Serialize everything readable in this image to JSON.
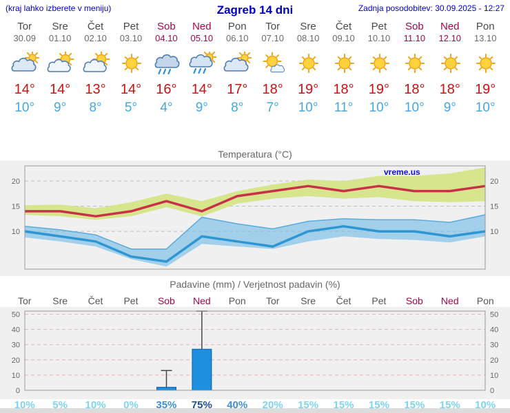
{
  "header": {
    "hint": "(kraj lahko izberete v meniju)",
    "title": "Zagreb 14 dni",
    "updated": "Zadnja posodobitev: 30.09.2025 - 12:27"
  },
  "watermark": "vreme.us",
  "days": [
    {
      "name": "Tor",
      "date": "30.09",
      "icon": "cloudy",
      "tmax": "14°",
      "tmin": "10°",
      "weekend": false
    },
    {
      "name": "Sre",
      "date": "01.10",
      "icon": "partly",
      "tmax": "14°",
      "tmin": "9°",
      "weekend": false
    },
    {
      "name": "Čet",
      "date": "02.10",
      "icon": "partly",
      "tmax": "13°",
      "tmin": "8°",
      "weekend": false
    },
    {
      "name": "Pet",
      "date": "03.10",
      "icon": "sunny",
      "tmax": "14°",
      "tmin": "5°",
      "weekend": false
    },
    {
      "name": "Sob",
      "date": "04.10",
      "icon": "rain",
      "tmax": "16°",
      "tmin": "4°",
      "weekend": true
    },
    {
      "name": "Ned",
      "date": "05.10",
      "icon": "rain-sun",
      "tmax": "14°",
      "tmin": "9°",
      "weekend": true
    },
    {
      "name": "Pon",
      "date": "06.10",
      "icon": "cloudy",
      "tmax": "17°",
      "tmin": "8°",
      "weekend": false
    },
    {
      "name": "Tor",
      "date": "07.10",
      "icon": "mostly-sunny",
      "tmax": "18°",
      "tmin": "7°",
      "weekend": false
    },
    {
      "name": "Sre",
      "date": "08.10",
      "icon": "sunny",
      "tmax": "19°",
      "tmin": "10°",
      "weekend": false
    },
    {
      "name": "Čet",
      "date": "09.10",
      "icon": "sunny",
      "tmax": "18°",
      "tmin": "11°",
      "weekend": false
    },
    {
      "name": "Pet",
      "date": "10.10",
      "icon": "sunny",
      "tmax": "19°",
      "tmin": "10°",
      "weekend": false
    },
    {
      "name": "Sob",
      "date": "11.10",
      "icon": "sunny",
      "tmax": "18°",
      "tmin": "10°",
      "weekend": true
    },
    {
      "name": "Ned",
      "date": "12.10",
      "icon": "sunny",
      "tmax": "18°",
      "tmin": "9°",
      "weekend": true
    },
    {
      "name": "Pon",
      "date": "13.10",
      "icon": "sunny",
      "tmax": "19°",
      "tmin": "10°",
      "weekend": false
    }
  ],
  "colors": {
    "accent_blue": "#0000cc",
    "weekend_red": "#a8054a",
    "tmax_red": "#c83248",
    "tmin_blue": "#2e96d2",
    "bar_blue": "#1e8ede",
    "prob_low": "#7fd4ee",
    "prob_mid": "#3f8fd2",
    "prob_high": "#1c4f9e"
  },
  "chart_data": [
    {
      "type": "line",
      "title": "Temperatura (°C)",
      "x_labels": [
        "Tor",
        "Sre",
        "Čet",
        "Pet",
        "Sob",
        "Ned",
        "Pon",
        "Tor",
        "Sre",
        "Čet",
        "Pet",
        "Sob",
        "Ned",
        "Pon"
      ],
      "ylim": [
        2.5,
        23
      ],
      "yticks": [
        10,
        15,
        20
      ],
      "grid": "dashed",
      "series": [
        {
          "name": "tmax",
          "label": "max temperature",
          "color": "#c83248",
          "values": [
            14,
            14,
            13,
            14,
            16,
            14,
            17,
            18,
            19,
            18,
            19,
            18,
            18,
            19
          ]
        },
        {
          "name": "tmax_range_upper",
          "label": "max range upper",
          "values": [
            15.2,
            15.3,
            14.6,
            15.8,
            17.5,
            16,
            18,
            19.3,
            20.3,
            20,
            21,
            21,
            21.5,
            22.7
          ]
        },
        {
          "name": "tmax_range_lower",
          "label": "max range lower",
          "values": [
            13.3,
            13,
            12.3,
            13,
            14.8,
            13,
            15.5,
            16.5,
            17,
            16.5,
            16.8,
            16,
            15.8,
            16
          ]
        },
        {
          "name": "tmin",
          "label": "min temperature",
          "color": "#2e96d2",
          "values": [
            10,
            9,
            8,
            5,
            4,
            9,
            8,
            7,
            10,
            11,
            10,
            10,
            9,
            10
          ]
        },
        {
          "name": "tmin_range_upper",
          "label": "min range upper",
          "values": [
            11,
            10.3,
            9.3,
            6.5,
            6.5,
            12.8,
            11.5,
            10.5,
            12,
            12.5,
            12.3,
            12.3,
            11.8,
            13.3
          ]
        },
        {
          "name": "tmin_range_lower",
          "label": "min range lower",
          "values": [
            8.8,
            8,
            7,
            4.5,
            3,
            7.5,
            7,
            6.5,
            8,
            9,
            8.5,
            8.3,
            7.8,
            9
          ]
        }
      ]
    },
    {
      "type": "bar",
      "title": "Padavine (mm) / Verjetnost padavin (%)",
      "categories": [
        "Tor",
        "Sre",
        "Čet",
        "Pet",
        "Sob",
        "Ned",
        "Pon",
        "Tor",
        "Sre",
        "Čet",
        "Pet",
        "Sob",
        "Ned",
        "Pon"
      ],
      "weekend": [
        false,
        false,
        false,
        false,
        true,
        true,
        false,
        false,
        false,
        false,
        false,
        true,
        true,
        false
      ],
      "precip_mm": [
        0,
        0,
        0,
        0,
        2,
        27,
        0,
        0,
        0,
        0,
        0,
        0,
        0,
        0
      ],
      "precip_max_mm": [
        0,
        0,
        0,
        0,
        13,
        52,
        0,
        0,
        0,
        0,
        0,
        0,
        0,
        0
      ],
      "probability": [
        "10%",
        "5%",
        "10%",
        "0%",
        "35%",
        "75%",
        "40%",
        "20%",
        "15%",
        "15%",
        "15%",
        "15%",
        "15%",
        "10%"
      ],
      "prob_emphasis": [
        0,
        0,
        0,
        0,
        1,
        2,
        1,
        0,
        0,
        0,
        0,
        0,
        0,
        0
      ],
      "ylim": [
        0,
        52
      ],
      "yticks": [
        0,
        10,
        20,
        30,
        40,
        50
      ],
      "grid": "dashed"
    }
  ]
}
